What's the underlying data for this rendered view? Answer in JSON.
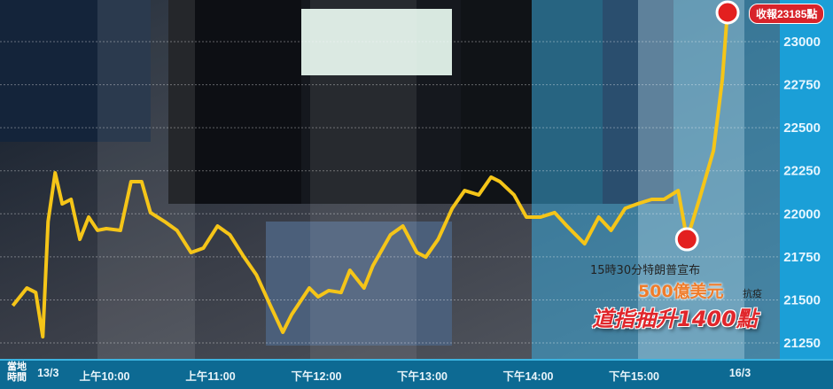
{
  "chart_data": {
    "type": "line",
    "title": "",
    "xlabel": "",
    "ylabel": "",
    "ylim": [
      21150,
      23250
    ],
    "y_ticks": [
      21250,
      21500,
      21750,
      22000,
      22250,
      22500,
      22750,
      23000
    ],
    "x_ticks": [
      {
        "time": "09:28",
        "label": "13/3"
      },
      {
        "time": "10:00",
        "label": "上午10:00"
      },
      {
        "time": "11:00",
        "label": "上午11:00"
      },
      {
        "time": "12:00",
        "label": "下午12:00"
      },
      {
        "time": "13:00",
        "label": "下午13:00"
      },
      {
        "time": "14:00",
        "label": "下午14:00"
      },
      {
        "time": "15:00",
        "label": "下午15:00"
      },
      {
        "time": "16:00",
        "label": "16/3"
      }
    ],
    "x_axis_title": "當地時間",
    "grid": true,
    "line_colors": [
      "#e8452a",
      "#f08a1e",
      "#f5c518"
    ],
    "points": [
      [
        "09:08",
        21466
      ],
      [
        "09:16",
        21569
      ],
      [
        "09:21",
        21543
      ],
      [
        "09:25",
        21286
      ],
      [
        "09:28",
        21955
      ],
      [
        "09:32",
        22238
      ],
      [
        "09:36",
        22058
      ],
      [
        "09:41",
        22084
      ],
      [
        "09:46",
        21852
      ],
      [
        "09:51",
        21981
      ],
      [
        "09:56",
        21904
      ],
      [
        "10:01",
        21914
      ],
      [
        "10:09",
        21904
      ],
      [
        "10:15",
        22187
      ],
      [
        "10:21",
        22187
      ],
      [
        "10:26",
        22007
      ],
      [
        "10:34",
        21955
      ],
      [
        "10:41",
        21904
      ],
      [
        "10:49",
        21775
      ],
      [
        "10:56",
        21801
      ],
      [
        "11:04",
        21929
      ],
      [
        "11:11",
        21878
      ],
      [
        "11:19",
        21749
      ],
      [
        "11:26",
        21646
      ],
      [
        "11:34",
        21466
      ],
      [
        "11:41",
        21312
      ],
      [
        "11:46",
        21415
      ],
      [
        "11:51",
        21492
      ],
      [
        "11:56",
        21569
      ],
      [
        "12:01",
        21518
      ],
      [
        "12:07",
        21554
      ],
      [
        "12:14",
        21543
      ],
      [
        "12:19",
        21672
      ],
      [
        "12:27",
        21569
      ],
      [
        "12:32",
        21698
      ],
      [
        "12:42",
        21878
      ],
      [
        "12:49",
        21929
      ],
      [
        "12:57",
        21775
      ],
      [
        "13:02",
        21749
      ],
      [
        "13:09",
        21852
      ],
      [
        "13:17",
        22032
      ],
      [
        "13:24",
        22135
      ],
      [
        "13:32",
        22110
      ],
      [
        "13:39",
        22213
      ],
      [
        "13:44",
        22187
      ],
      [
        "13:52",
        22110
      ],
      [
        "13:59",
        21981
      ],
      [
        "14:07",
        21981
      ],
      [
        "14:15",
        22007
      ],
      [
        "14:22",
        21929
      ],
      [
        "14:32",
        21826
      ],
      [
        "14:40",
        21981
      ],
      [
        "14:47",
        21904
      ],
      [
        "14:55",
        22032
      ],
      [
        "15:02",
        22058
      ],
      [
        "15:10",
        22084
      ],
      [
        "15:17",
        22084
      ],
      [
        "15:25",
        22135
      ],
      [
        "15:30",
        21852
      ],
      [
        "15:37",
        22084
      ],
      [
        "15:45",
        22367
      ],
      [
        "15:50",
        22779
      ],
      [
        "15:53",
        23185
      ]
    ],
    "highlight_points": [
      [
        "15:30",
        21852
      ],
      [
        "15:53",
        23185
      ]
    ],
    "closing_label": "收報23185點",
    "annotations": {
      "line1": "15時30分特朗普宣布",
      "line2": "500億美元",
      "line2_suffix": "抗疫",
      "headline": "道指抽升1400點"
    }
  }
}
